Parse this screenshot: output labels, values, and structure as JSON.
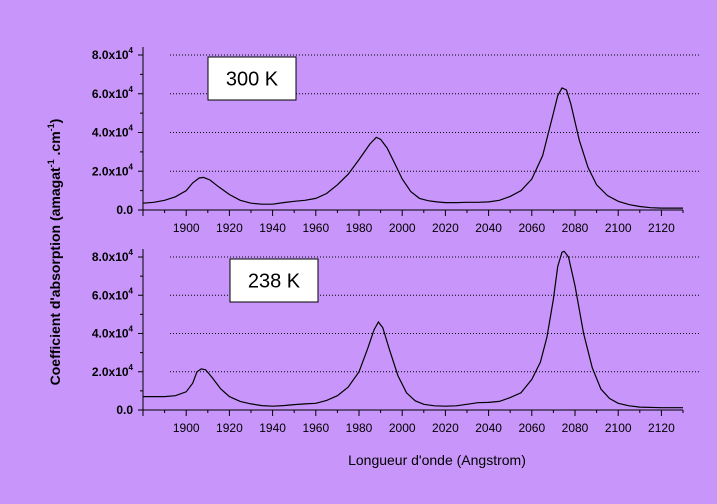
{
  "chart_data": {
    "type": "line",
    "xlabel": "Longueur d'onde (Angstrom)",
    "ylabel": "Coefficient d'absorption (amagat-1 .cm-1)",
    "xlim": [
      1880,
      2130
    ],
    "ylim": [
      0,
      80000
    ],
    "x_ticks": [
      1900,
      1920,
      1940,
      1960,
      1980,
      2000,
      2020,
      2040,
      2060,
      2080,
      2100,
      2120
    ],
    "x_tick_labels": [
      "1900",
      "1920",
      "1940",
      "1960",
      "1980",
      "2000",
      "2020",
      "2040",
      "2060",
      "2080",
      "2100",
      "2120"
    ],
    "y_ticks": [
      0,
      20000,
      40000,
      60000,
      80000
    ],
    "y_tick_mantissas": [
      "0.0",
      "2.0x10",
      "4.0x10",
      "6.0x10",
      "8.0x10"
    ],
    "y_tick_exponent": "4",
    "grid": "dotted horizontal",
    "panels": [
      {
        "label": "300 K",
        "points": [
          [
            1880,
            3500
          ],
          [
            1885,
            4000
          ],
          [
            1890,
            5000
          ],
          [
            1895,
            6800
          ],
          [
            1900,
            10000
          ],
          [
            1903,
            14000
          ],
          [
            1906,
            16500
          ],
          [
            1908,
            16800
          ],
          [
            1911,
            15500
          ],
          [
            1915,
            12000
          ],
          [
            1920,
            8000
          ],
          [
            1925,
            5000
          ],
          [
            1930,
            3500
          ],
          [
            1935,
            3000
          ],
          [
            1940,
            3000
          ],
          [
            1945,
            3800
          ],
          [
            1950,
            4500
          ],
          [
            1955,
            5000
          ],
          [
            1960,
            6000
          ],
          [
            1965,
            8500
          ],
          [
            1970,
            13000
          ],
          [
            1975,
            18500
          ],
          [
            1980,
            26000
          ],
          [
            1985,
            34000
          ],
          [
            1988,
            37500
          ],
          [
            1990,
            36500
          ],
          [
            1993,
            32000
          ],
          [
            1997,
            23000
          ],
          [
            2000,
            16000
          ],
          [
            2004,
            9500
          ],
          [
            2008,
            6000
          ],
          [
            2012,
            4800
          ],
          [
            2016,
            4200
          ],
          [
            2020,
            3800
          ],
          [
            2025,
            3800
          ],
          [
            2030,
            4000
          ],
          [
            2035,
            4000
          ],
          [
            2040,
            4200
          ],
          [
            2045,
            5000
          ],
          [
            2050,
            7000
          ],
          [
            2055,
            10000
          ],
          [
            2060,
            16000
          ],
          [
            2065,
            28000
          ],
          [
            2070,
            50000
          ],
          [
            2072,
            59000
          ],
          [
            2074,
            63000
          ],
          [
            2076,
            62000
          ],
          [
            2078,
            55000
          ],
          [
            2082,
            36000
          ],
          [
            2086,
            22000
          ],
          [
            2090,
            13000
          ],
          [
            2095,
            7500
          ],
          [
            2100,
            4500
          ],
          [
            2105,
            2800
          ],
          [
            2110,
            1800
          ],
          [
            2115,
            1200
          ],
          [
            2120,
            1000
          ],
          [
            2125,
            1000
          ],
          [
            2130,
            1000
          ]
        ]
      },
      {
        "label": "238 K",
        "points": [
          [
            1880,
            7000
          ],
          [
            1890,
            7000
          ],
          [
            1895,
            7500
          ],
          [
            1900,
            9500
          ],
          [
            1903,
            14000
          ],
          [
            1905,
            20000
          ],
          [
            1907,
            21500
          ],
          [
            1909,
            21000
          ],
          [
            1912,
            17000
          ],
          [
            1916,
            11000
          ],
          [
            1920,
            7000
          ],
          [
            1925,
            4500
          ],
          [
            1930,
            3200
          ],
          [
            1935,
            2300
          ],
          [
            1940,
            2000
          ],
          [
            1945,
            2300
          ],
          [
            1950,
            2800
          ],
          [
            1955,
            3200
          ],
          [
            1960,
            3500
          ],
          [
            1965,
            5000
          ],
          [
            1970,
            7500
          ],
          [
            1975,
            12000
          ],
          [
            1980,
            20000
          ],
          [
            1984,
            32000
          ],
          [
            1987,
            42000
          ],
          [
            1989,
            46000
          ],
          [
            1991,
            43000
          ],
          [
            1994,
            32000
          ],
          [
            1998,
            18000
          ],
          [
            2002,
            9000
          ],
          [
            2006,
            4800
          ],
          [
            2010,
            3000
          ],
          [
            2015,
            2200
          ],
          [
            2020,
            2000
          ],
          [
            2025,
            2200
          ],
          [
            2030,
            3000
          ],
          [
            2035,
            3800
          ],
          [
            2040,
            4000
          ],
          [
            2045,
            4500
          ],
          [
            2050,
            6500
          ],
          [
            2055,
            9000
          ],
          [
            2060,
            16000
          ],
          [
            2064,
            25000
          ],
          [
            2067,
            38000
          ],
          [
            2070,
            58000
          ],
          [
            2072,
            75000
          ],
          [
            2074,
            82500
          ],
          [
            2075,
            83000
          ],
          [
            2077,
            80000
          ],
          [
            2080,
            65000
          ],
          [
            2084,
            40000
          ],
          [
            2088,
            22000
          ],
          [
            2092,
            11000
          ],
          [
            2096,
            6000
          ],
          [
            2100,
            3500
          ],
          [
            2105,
            2200
          ],
          [
            2110,
            1500
          ],
          [
            2120,
            1200
          ],
          [
            2130,
            1200
          ]
        ]
      }
    ]
  }
}
